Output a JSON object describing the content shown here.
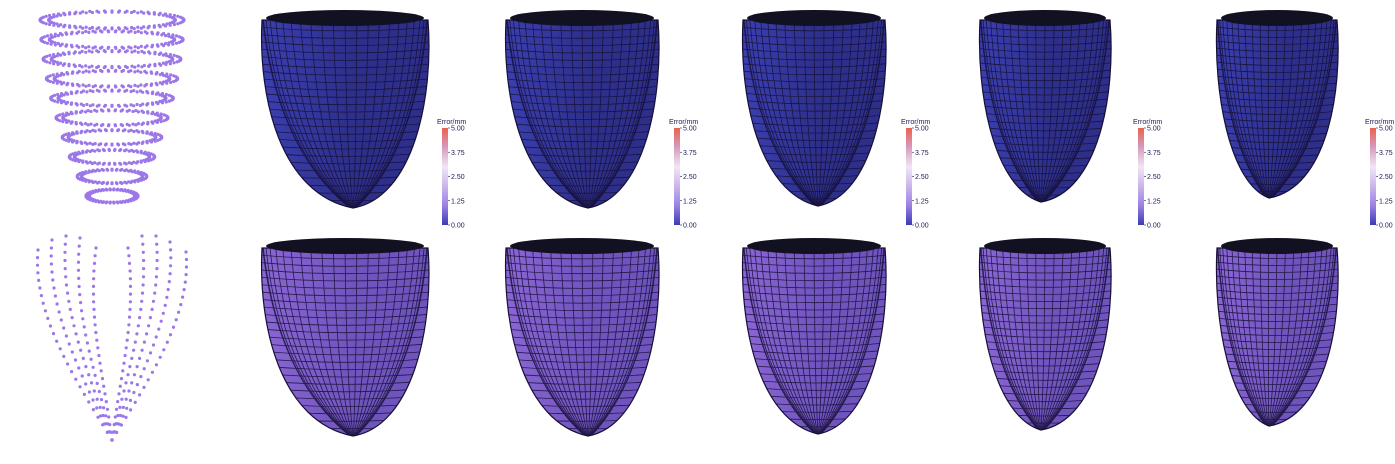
{
  "colors": {
    "point_cloud": "#9b77e8",
    "mesh_top_fill": "#2d2f8a",
    "mesh_top_light": "#3b3fb0",
    "mesh_bottom_fill": "#7054be",
    "mesh_bottom_light": "#8a66d4",
    "mesh_grid": "#161036",
    "rim": "#111122",
    "colorbar_gradient": [
      "#e8624d",
      "#d79bc0",
      "#efe6f3",
      "#cbb6ee",
      "#9a82e2",
      "#3b3bb6"
    ]
  },
  "colorbar": {
    "title": "Error/mm",
    "ticks": [
      "5.00",
      "3.75",
      "2.50",
      "1.25",
      "0.00"
    ]
  },
  "rows": [
    {
      "name": "top",
      "point_cloud": "ring-slices",
      "meshes": [
        {
          "shape": "wide",
          "colorbar": true
        },
        {
          "shape": "medium",
          "colorbar": true
        },
        {
          "shape": "medium-narrow",
          "colorbar": true
        },
        {
          "shape": "narrow",
          "colorbar": true
        },
        {
          "shape": "slim",
          "colorbar": true
        }
      ]
    },
    {
      "name": "bottom",
      "point_cloud": "long-axis-slices",
      "meshes": [
        {
          "shape": "wide",
          "colorbar": false
        },
        {
          "shape": "medium",
          "colorbar": false
        },
        {
          "shape": "medium-narrow",
          "colorbar": false
        },
        {
          "shape": "narrow",
          "colorbar": false
        },
        {
          "shape": "slim",
          "colorbar": false
        }
      ]
    }
  ]
}
